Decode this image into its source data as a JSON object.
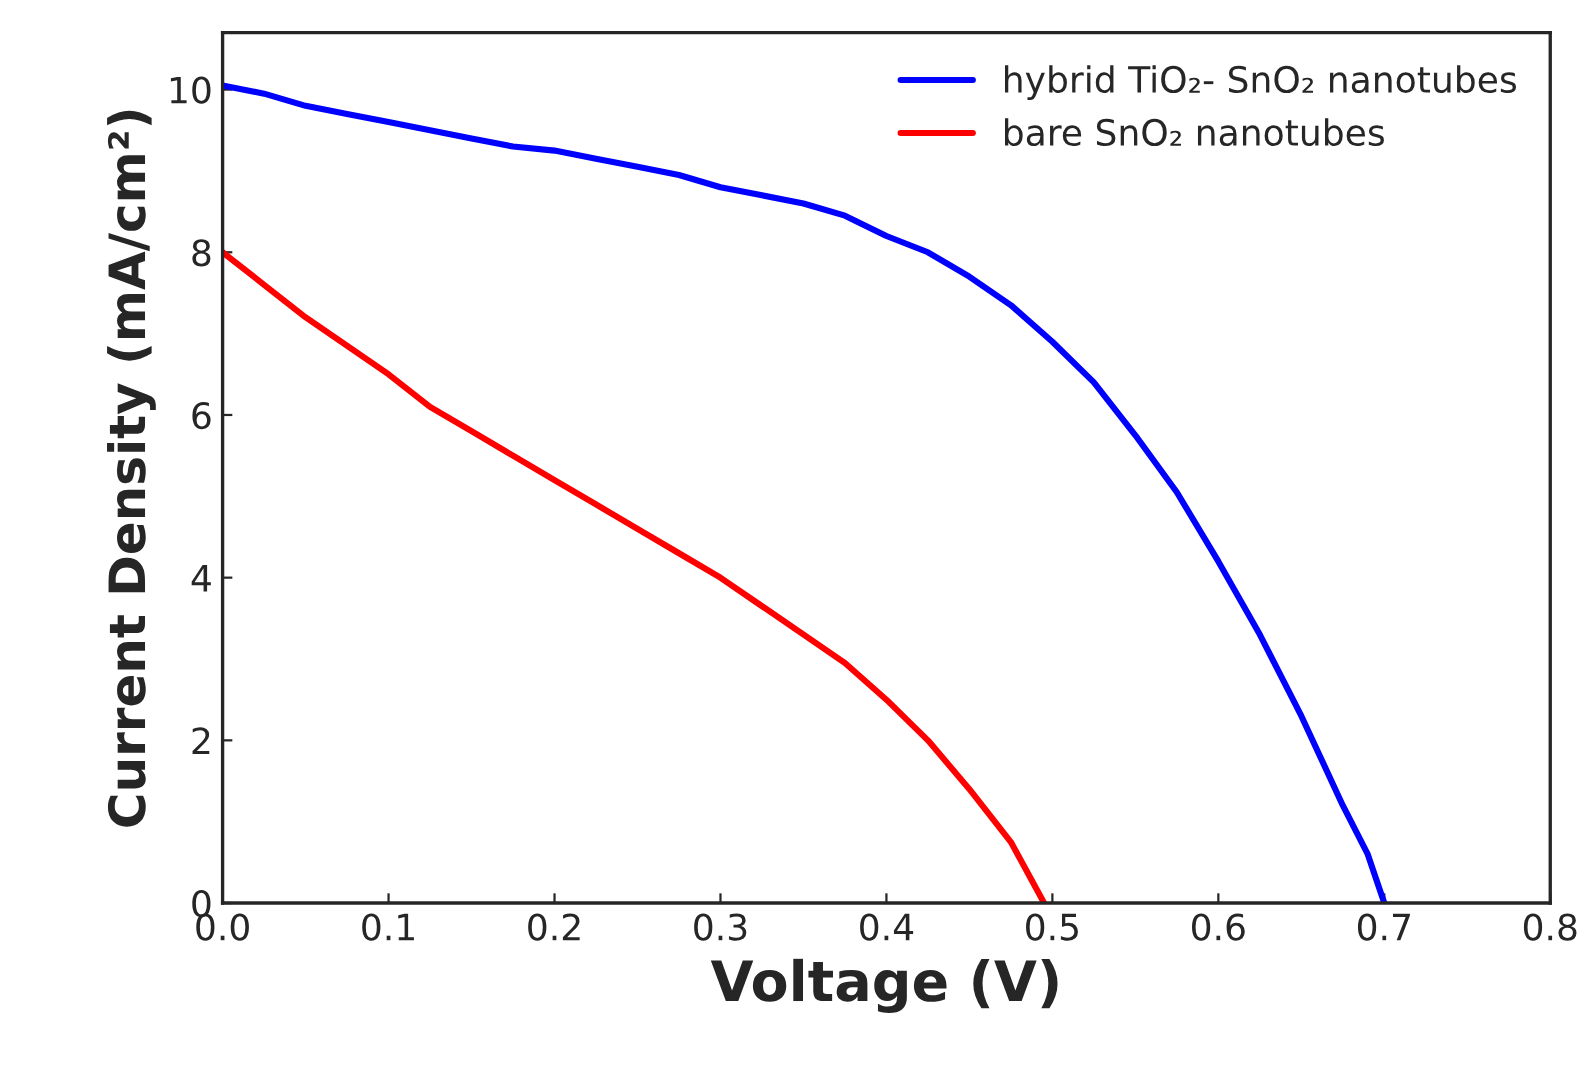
{
  "chart_data": {
    "type": "line",
    "xlabel": "Voltage (V)",
    "ylabel": "Current Density (mA/cm²)",
    "xlim": [
      0,
      0.8
    ],
    "xticks": [
      {
        "value": 0,
        "label": "0.0"
      },
      0.1,
      0.2,
      0.3,
      0.4,
      0.5,
      0.6,
      0.7,
      0.8
    ],
    "ylim": [
      0,
      10.7
    ],
    "yticks": [
      0,
      2,
      4,
      6,
      8,
      10
    ],
    "legend": "top right",
    "grid": false,
    "series": [
      {
        "name": "hybrid TiO₂- SnO₂ nanotubes",
        "color": "#0000ff",
        "x": [
          0,
          0.025,
          0.05,
          0.075,
          0.1,
          0.125,
          0.15,
          0.175,
          0.2,
          0.225,
          0.25,
          0.275,
          0.3,
          0.325,
          0.35,
          0.375,
          0.4,
          0.425,
          0.45,
          0.475,
          0.5,
          0.525,
          0.55,
          0.575,
          0.6,
          0.625,
          0.65,
          0.675,
          0.69,
          0.7
        ],
        "values": [
          10.05,
          9.95,
          9.8,
          9.7,
          9.6,
          9.5,
          9.4,
          9.3,
          9.25,
          9.15,
          9.05,
          8.95,
          8.8,
          8.7,
          8.6,
          8.45,
          8.2,
          8.0,
          7.7,
          7.35,
          6.9,
          6.4,
          5.75,
          5.05,
          4.2,
          3.3,
          2.3,
          1.2,
          0.6,
          0
        ]
      },
      {
        "name": "bare SnO₂ nanotubes",
        "color": "#ff0000",
        "x": [
          0,
          0.025,
          0.05,
          0.075,
          0.1,
          0.125,
          0.15,
          0.175,
          0.2,
          0.225,
          0.25,
          0.275,
          0.3,
          0.325,
          0.35,
          0.375,
          0.4,
          0.425,
          0.45,
          0.475,
          0.495
        ],
        "values": [
          8.0,
          7.6,
          7.2,
          6.85,
          6.5,
          6.1,
          5.8,
          5.5,
          5.2,
          4.9,
          4.6,
          4.3,
          4.0,
          3.65,
          3.3,
          2.95,
          2.5,
          2.0,
          1.4,
          0.75,
          0
        ]
      }
    ]
  }
}
